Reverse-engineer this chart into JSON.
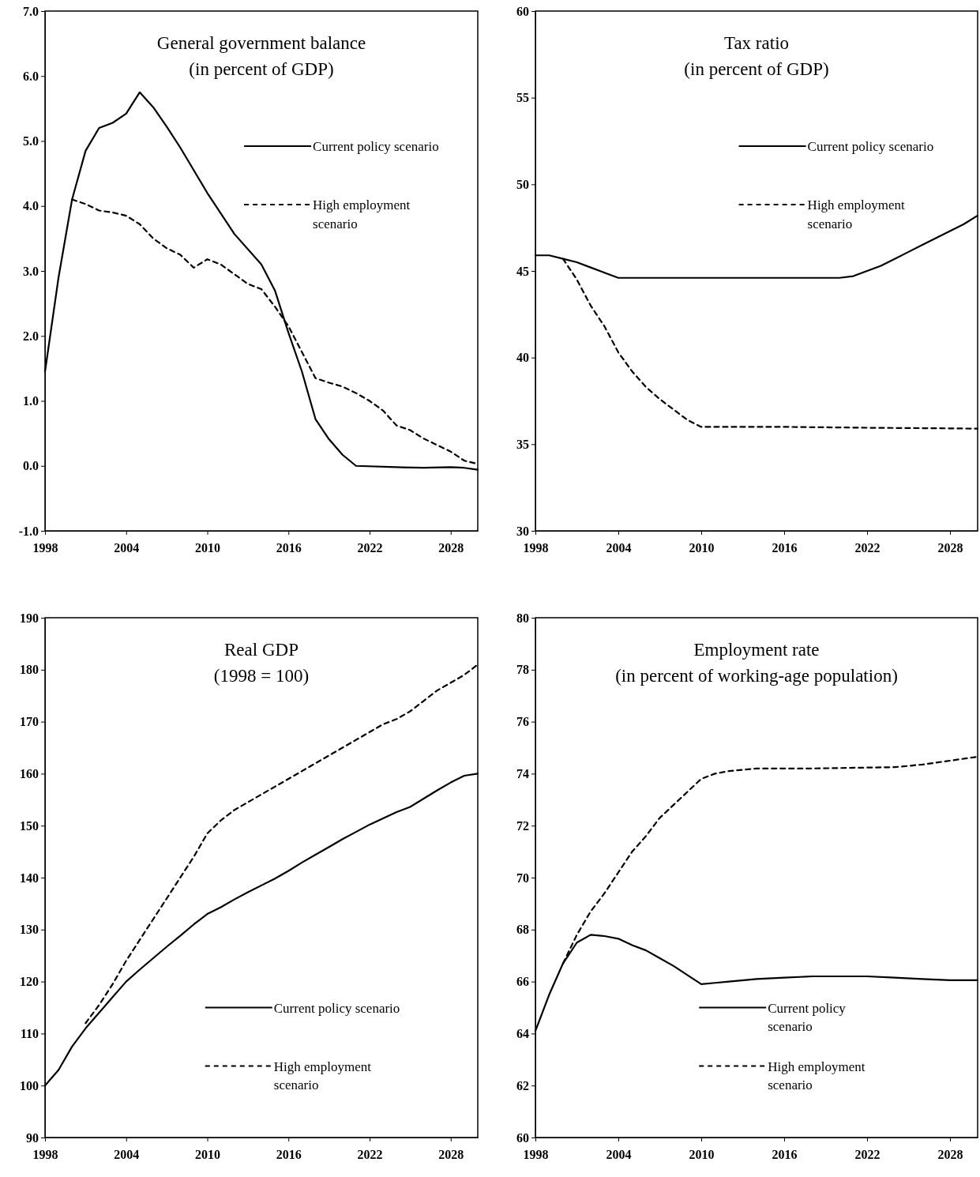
{
  "chart_data": [
    {
      "type": "line",
      "title": "General government balance",
      "subtitle": "(in percent of GDP)",
      "xlim": [
        1998,
        2030
      ],
      "xticks": [
        1998,
        2004,
        2010,
        2016,
        2022,
        2028
      ],
      "ylim": [
        -1,
        7
      ],
      "yticks": [
        {
          "value": -1,
          "label": "-1.0"
        },
        {
          "value": 0,
          "label": "0.0"
        },
        {
          "value": 1,
          "label": "1.0"
        },
        {
          "value": 2,
          "label": "2.0"
        },
        {
          "value": 3,
          "label": "3.0"
        },
        {
          "value": 4,
          "label": "4.0"
        },
        {
          "value": 5,
          "label": "5.0"
        },
        {
          "value": 6,
          "label": "6.0"
        },
        {
          "value": 7,
          "label": "7.0"
        }
      ],
      "legend": "top right",
      "grid": false,
      "series": [
        {
          "name": "Current policy scenario",
          "color": "#000000",
          "line_style": "solid",
          "x": [
            1998,
            1999,
            2000,
            2001,
            2002,
            2003,
            2004,
            2005,
            2006,
            2007,
            2008,
            2009,
            2010,
            2012,
            2014,
            2015,
            2016,
            2017,
            2018,
            2019,
            2020,
            2021,
            2024,
            2026,
            2028,
            2029,
            2030
          ],
          "values": [
            1.45,
            2.9,
            4.1,
            4.85,
            5.2,
            5.28,
            5.42,
            5.75,
            5.52,
            5.22,
            4.9,
            4.55,
            4.2,
            3.57,
            3.1,
            2.7,
            2.05,
            1.45,
            0.72,
            0.41,
            0.17,
            0,
            -0.02,
            -0.03,
            -0.02,
            -0.03,
            -0.06
          ]
        },
        {
          "name": "High employment scenario",
          "color": "#000000",
          "line_style": "dashed",
          "x": [
            2000,
            2001,
            2002,
            2003,
            2004,
            2005,
            2006,
            2007,
            2008,
            2009,
            2010,
            2011,
            2012,
            2013,
            2014,
            2015,
            2016,
            2017,
            2018,
            2019,
            2020,
            2021,
            2022,
            2023,
            2024,
            2025,
            2026,
            2027,
            2028,
            2029,
            2030
          ],
          "values": [
            4.1,
            4.03,
            3.93,
            3.9,
            3.85,
            3.72,
            3.5,
            3.35,
            3.25,
            3.05,
            3.18,
            3.1,
            2.95,
            2.8,
            2.72,
            2.45,
            2.15,
            1.75,
            1.35,
            1.28,
            1.22,
            1.12,
            1.0,
            0.85,
            0.62,
            0.55,
            0.42,
            0.32,
            0.22,
            0.08,
            0.03
          ]
        }
      ]
    },
    {
      "type": "line",
      "title": "Tax ratio",
      "subtitle": "(in percent of GDP)",
      "xlim": [
        1998,
        2030
      ],
      "xticks": [
        1998,
        2004,
        2010,
        2016,
        2022,
        2028
      ],
      "ylim": [
        30,
        60
      ],
      "yticks": [
        30,
        35,
        40,
        45,
        50,
        55,
        60
      ],
      "legend": "top right",
      "grid": false,
      "series": [
        {
          "name": "Current policy scenario",
          "color": "#000000",
          "line_style": "solid",
          "x": [
            1998,
            1999,
            2000,
            2001,
            2002,
            2003,
            2004,
            2010,
            2016,
            2020,
            2021,
            2022,
            2023,
            2024,
            2025,
            2026,
            2027,
            2028,
            2029,
            2030
          ],
          "values": [
            45.9,
            45.9,
            45.7,
            45.5,
            45.2,
            44.9,
            44.6,
            44.6,
            44.6,
            44.6,
            44.7,
            45.0,
            45.3,
            45.7,
            46.1,
            46.5,
            46.9,
            47.3,
            47.7,
            48.2
          ]
        },
        {
          "name": "High employment scenario",
          "color": "#000000",
          "line_style": "dashed",
          "x": [
            2000,
            2001,
            2002,
            2003,
            2004,
            2005,
            2006,
            2007,
            2008,
            2009,
            2010,
            2016,
            2022,
            2030
          ],
          "values": [
            45.7,
            44.5,
            43.0,
            41.8,
            40.3,
            39.2,
            38.3,
            37.6,
            37.0,
            36.4,
            36.0,
            36.0,
            35.95,
            35.9
          ]
        }
      ]
    },
    {
      "type": "line",
      "title": "Real GDP",
      "subtitle": "(1998 = 100)",
      "xlim": [
        1998,
        2030
      ],
      "xticks": [
        1998,
        2004,
        2010,
        2016,
        2022,
        2028
      ],
      "ylim": [
        90,
        190
      ],
      "yticks": [
        90,
        100,
        110,
        120,
        130,
        140,
        150,
        160,
        170,
        180,
        190
      ],
      "legend": "bottom right",
      "grid": false,
      "series": [
        {
          "name": "Current policy scenario",
          "color": "#000000",
          "line_style": "solid",
          "x": [
            1998,
            1999,
            2000,
            2001,
            2002,
            2003,
            2004,
            2005,
            2006,
            2007,
            2008,
            2009,
            2010,
            2011,
            2012,
            2013,
            2014,
            2015,
            2016,
            2017,
            2018,
            2019,
            2020,
            2021,
            2022,
            2023,
            2024,
            2025,
            2026,
            2027,
            2028,
            2029,
            2030
          ],
          "values": [
            100,
            103,
            107.5,
            111,
            114,
            117,
            120,
            122.3,
            124.5,
            126.7,
            128.8,
            131,
            133,
            134.3,
            135.8,
            137.2,
            138.5,
            139.8,
            141.3,
            142.9,
            144.4,
            145.9,
            147.4,
            148.8,
            150.2,
            151.4,
            152.6,
            153.6,
            155.2,
            156.8,
            158.3,
            159.6,
            160
          ]
        },
        {
          "name": "High employment scenario",
          "color": "#000000",
          "line_style": "dashed",
          "x": [
            2001,
            2002,
            2003,
            2004,
            2005,
            2006,
            2007,
            2008,
            2009,
            2010,
            2011,
            2012,
            2013,
            2014,
            2015,
            2016,
            2017,
            2018,
            2019,
            2020,
            2021,
            2022,
            2023,
            2024,
            2025,
            2026,
            2027,
            2028,
            2029,
            2030
          ],
          "values": [
            112,
            115.5,
            119.5,
            124,
            128,
            132,
            136,
            140,
            144,
            148.5,
            151,
            153,
            154.5,
            156,
            157.5,
            159,
            160.5,
            162,
            163.5,
            165,
            166.5,
            168,
            169.5,
            170.5,
            172,
            174,
            176,
            177.5,
            179,
            181
          ]
        }
      ]
    },
    {
      "type": "line",
      "title": "Employment rate",
      "subtitle": "(in percent of working-age population)",
      "xlim": [
        1998,
        2030
      ],
      "xticks": [
        1998,
        2004,
        2010,
        2016,
        2022,
        2028
      ],
      "ylim": [
        60,
        80
      ],
      "yticks": [
        60,
        62,
        64,
        66,
        68,
        70,
        72,
        74,
        76,
        78,
        80
      ],
      "legend": "bottom right",
      "grid": false,
      "series": [
        {
          "name": "Current policy scenario",
          "color": "#000000",
          "line_style": "solid",
          "x": [
            1998,
            1999,
            2000,
            2001,
            2002,
            2003,
            2004,
            2005,
            2006,
            2007,
            2008,
            2009,
            2010,
            2011,
            2012,
            2014,
            2016,
            2018,
            2020,
            2022,
            2024,
            2026,
            2028,
            2030
          ],
          "values": [
            64.1,
            65.5,
            66.7,
            67.5,
            67.8,
            67.75,
            67.65,
            67.4,
            67.2,
            66.9,
            66.6,
            66.25,
            65.9,
            65.95,
            66.0,
            66.1,
            66.15,
            66.2,
            66.2,
            66.2,
            66.15,
            66.1,
            66.05,
            66.05
          ]
        },
        {
          "name": "High employment scenario",
          "color": "#000000",
          "line_style": "dashed",
          "x": [
            2000,
            2001,
            2002,
            2003,
            2004,
            2005,
            2006,
            2007,
            2008,
            2009,
            2010,
            2011,
            2012,
            2014,
            2018,
            2024,
            2026,
            2028,
            2030
          ],
          "values": [
            66.7,
            67.8,
            68.7,
            69.4,
            70.2,
            71.0,
            71.6,
            72.3,
            72.8,
            73.3,
            73.8,
            74.0,
            74.1,
            74.2,
            74.2,
            74.25,
            74.35,
            74.5,
            74.65
          ]
        }
      ]
    }
  ]
}
